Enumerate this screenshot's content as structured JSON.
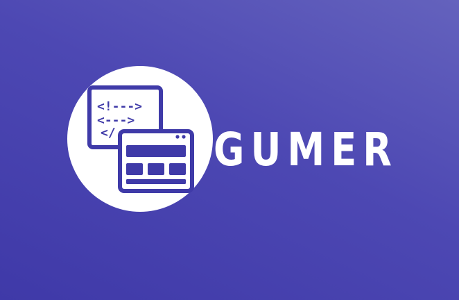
{
  "brand": {
    "name": "GUMER",
    "logo_icon": "code-and-browser-window-icon"
  },
  "colors": {
    "background_top_right": "#6462bd",
    "background_bottom_left": "#3f39a8",
    "icon_stroke": "#3f3aa8",
    "circle_fill": "#ffffff",
    "text_color": "#ffffff"
  },
  "code_lines": {
    "line1": "<!--->",
    "line2": "<--->",
    "line3": "</"
  }
}
